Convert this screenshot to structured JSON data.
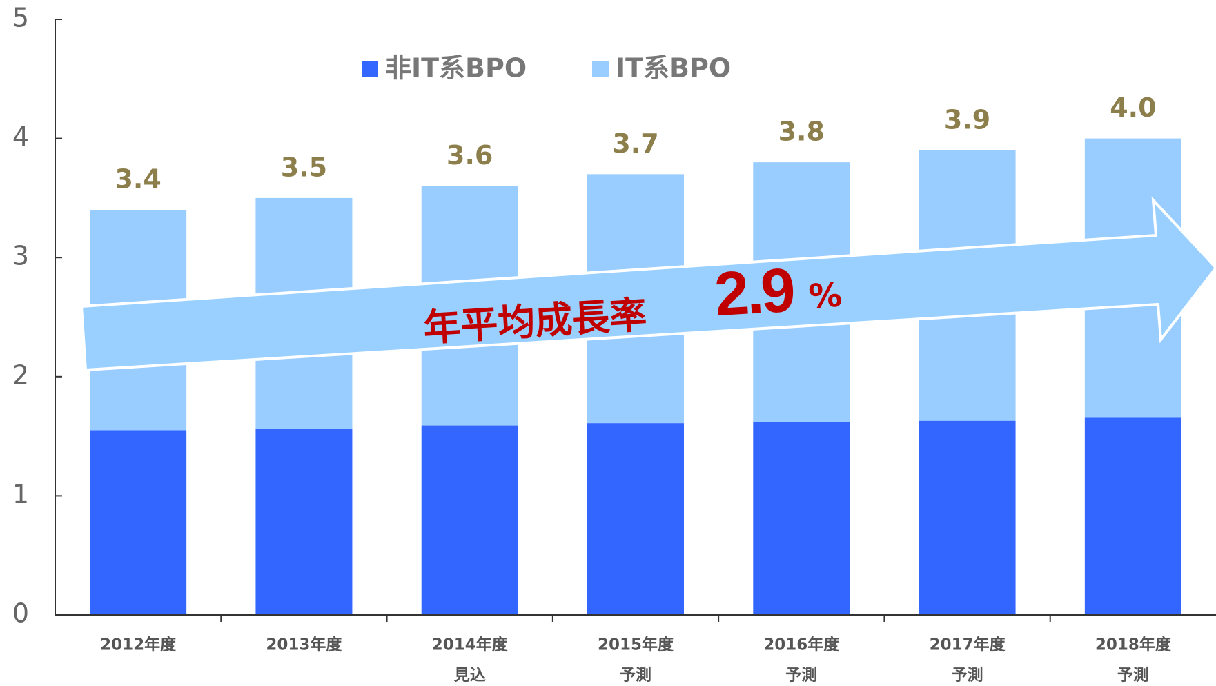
{
  "chart_data": {
    "type": "stacked_bar",
    "categories": [
      "2012年度",
      "2013年度",
      "2014年度",
      "2015年度",
      "2016年度",
      "2017年度",
      "2018年度"
    ],
    "category_notes": [
      null,
      null,
      "見込",
      "予測",
      "予測",
      "予測",
      "予測"
    ],
    "series": [
      {
        "name": "非IT系BPO",
        "color": "#3366ff",
        "values": [
          1.55,
          1.56,
          1.59,
          1.61,
          1.62,
          1.63,
          1.66
        ]
      },
      {
        "name": "IT系BPO",
        "color": "#99ccff",
        "values": [
          1.85,
          1.94,
          2.01,
          2.09,
          2.18,
          2.27,
          2.34
        ]
      }
    ],
    "totals": [
      3.4,
      3.5,
      3.6,
      3.7,
      3.8,
      3.9,
      4.0
    ],
    "total_labels": [
      "3.4",
      "3.5",
      "3.6",
      "3.7",
      "3.8",
      "3.9",
      "4.0"
    ],
    "ylim": [
      0,
      5
    ],
    "yticks": [
      0,
      1,
      2,
      3,
      4,
      5
    ],
    "annotation": {
      "text": "年平均成長率",
      "value": 2.9,
      "unit": "%"
    }
  }
}
